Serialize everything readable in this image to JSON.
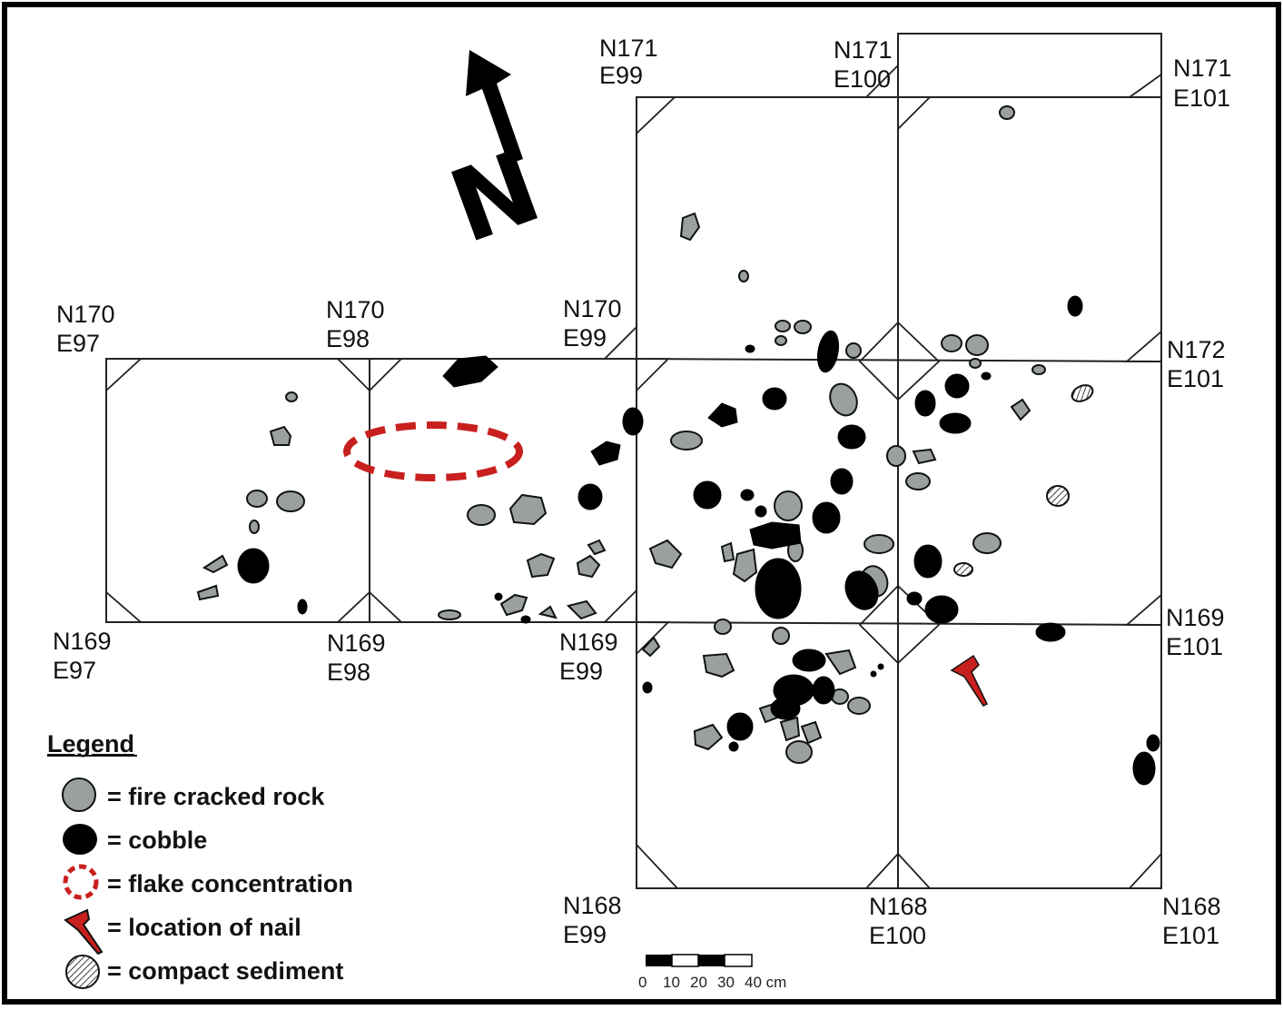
{
  "north_arrow": {
    "letter": "N",
    "icon": "north-arrow-icon"
  },
  "grid_labels": {
    "n171_e99": {
      "n": "N171",
      "e": "E99"
    },
    "n171_e100": {
      "n": "N171",
      "e": "E100"
    },
    "n171_e101": {
      "n": "N171",
      "e": "E101"
    },
    "n170_e97": {
      "n": "N170",
      "e": "E97"
    },
    "n170_e98": {
      "n": "N170",
      "e": "E98"
    },
    "n170_e99": {
      "n": "N170",
      "e": "E99"
    },
    "n172_e101": {
      "n": "N172",
      "e": "E101"
    },
    "n169_e97": {
      "n": "N169",
      "e": "E97"
    },
    "n169_e98": {
      "n": "N169",
      "e": "E98"
    },
    "n169_e99": {
      "n": "N169",
      "e": "E99"
    },
    "n169_e101": {
      "n": "N169",
      "e": "E101"
    },
    "n168_e99": {
      "n": "N168",
      "e": "E99"
    },
    "n168_e100": {
      "n": "N168",
      "e": "E100"
    },
    "n168_e101": {
      "n": "N168",
      "e": "E101"
    }
  },
  "legend": {
    "title": "Legend",
    "items": [
      {
        "symbol": "fire-cracked-rock-icon",
        "label": "= fire cracked rock",
        "color": "#9aa0a0"
      },
      {
        "symbol": "cobble-icon",
        "label": "= cobble",
        "color": "#000000"
      },
      {
        "symbol": "flake-concentration-icon",
        "label": "= flake concentration",
        "color": "#c8201e"
      },
      {
        "symbol": "nail-icon",
        "label": "= location of nail",
        "color": "#c8201e"
      },
      {
        "symbol": "compact-sediment-icon",
        "label": "= compact sediment",
        "color": "#ffffff"
      }
    ]
  },
  "scale_bar": {
    "ticks": [
      "0",
      "10",
      "20",
      "30",
      "40 cm"
    ]
  },
  "colors": {
    "fire_cracked_rock": "#9aa0a0",
    "cobble": "#000000",
    "flake": "#c8201e",
    "nail": "#c8201e"
  }
}
